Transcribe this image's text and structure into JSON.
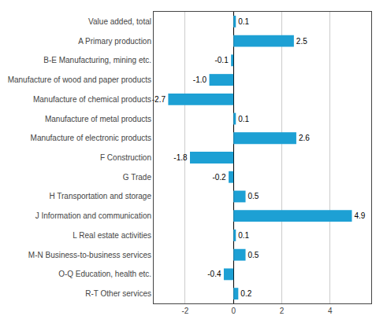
{
  "chart_data": {
    "type": "bar",
    "orientation": "horizontal",
    "categories": [
      "Value added, total",
      "A Primary production",
      "B-E Manufacturing, mining etc.",
      "Manufacture of wood and paper products",
      "Manufacture of chemical products",
      "Manufacture of metal products",
      "Manufacture of electronic products",
      "F Construction",
      "G Trade",
      "H Transportation and storage",
      "J Information and communication",
      "L Real estate activities",
      "M-N Business-to-business services",
      "O-Q Education, health etc.",
      "R-T Other services"
    ],
    "values": [
      0.1,
      2.5,
      -0.1,
      -1.0,
      -2.7,
      0.1,
      2.6,
      -1.8,
      -0.2,
      0.5,
      4.9,
      0.1,
      0.5,
      -0.4,
      0.2
    ],
    "value_labels": [
      "0.1",
      "2.5",
      "-0.1",
      "-1.0",
      "-2.7",
      "0.1",
      "2.6",
      "-1.8",
      "-0.2",
      "0.5",
      "4.9",
      "0.1",
      "0.5",
      "-0.4",
      "0.2"
    ],
    "color": "#1da0d4",
    "xlim": [
      -3.3,
      5.7
    ],
    "xticks": [
      -2,
      0,
      2,
      4
    ],
    "grid": true,
    "data_labels": true
  }
}
